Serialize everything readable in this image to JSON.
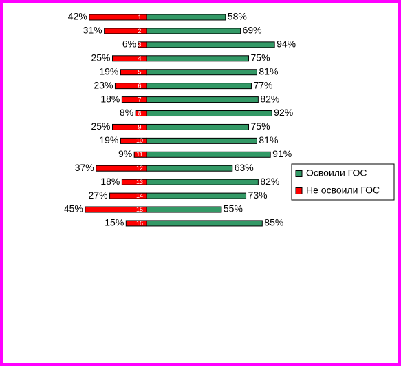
{
  "chart_data": {
    "type": "diverging-bar",
    "categories": [
      "1",
      "2",
      "3",
      "4",
      "5",
      "6",
      "7",
      "8",
      "9",
      "10",
      "11",
      "12",
      "13",
      "14",
      "15",
      "16"
    ],
    "series": [
      {
        "name": "Освоили ГОС",
        "color": "#339966",
        "values": [
          58,
          69,
          94,
          75,
          81,
          77,
          82,
          92,
          75,
          81,
          91,
          63,
          82,
          73,
          55,
          85
        ],
        "value_labels": [
          "58%",
          "69%",
          "94%",
          "75%",
          "81%",
          "77%",
          "82%",
          "92%",
          "75%",
          "81%",
          "91%",
          "63%",
          "82%",
          "73%",
          "55%",
          "85%"
        ]
      },
      {
        "name": "Не освоили ГОС",
        "color": "#ff0000",
        "values": [
          42,
          31,
          6,
          25,
          19,
          23,
          18,
          8,
          25,
          19,
          9,
          37,
          18,
          27,
          45,
          15
        ],
        "value_labels": [
          "42%",
          "31%",
          "6%",
          "25%",
          "19%",
          "23%",
          "18%",
          "8%",
          "25%",
          "19%",
          "9%",
          "37%",
          "18%",
          "27%",
          "45%",
          "15%"
        ]
      }
    ],
    "legend": "right"
  }
}
